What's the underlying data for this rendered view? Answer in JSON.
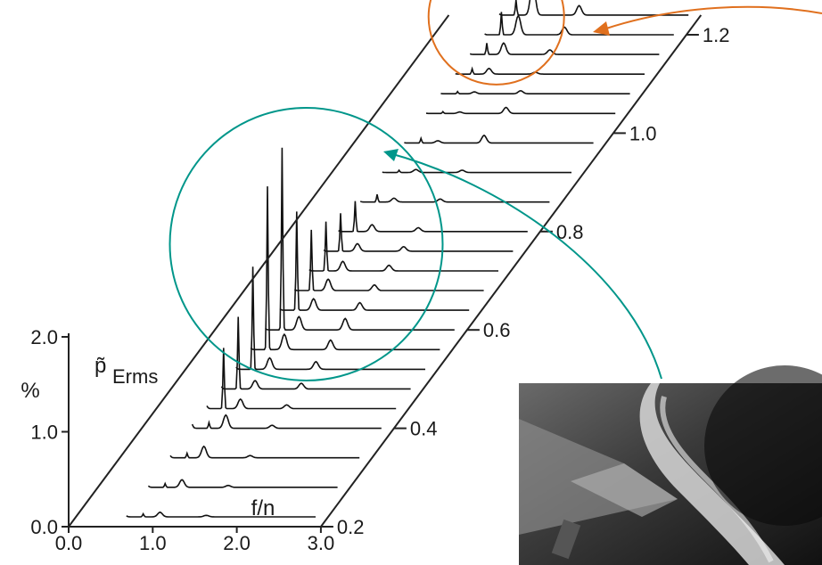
{
  "chart_data": {
    "type": "waterfall-3d-line",
    "axes": {
      "x": {
        "label": "f/n",
        "ticks": [
          "0.0",
          "1.0",
          "2.0",
          "3.0"
        ],
        "range": [
          0,
          3
        ]
      },
      "y": {
        "label": "p̃",
        "label_sub": "Erms",
        "unit": "%",
        "ticks": [
          "0.0",
          "1.0",
          "2.0"
        ],
        "range": [
          0,
          2
        ]
      },
      "z": {
        "ticks": [
          "0.2",
          "0.4",
          "0.6",
          "0.8",
          "1.0",
          "1.2"
        ],
        "range": [
          0.2,
          1.2
        ]
      }
    },
    "peak_positions_fn": [
      0.55,
      0.8,
      1.0,
      1.55
    ],
    "traces": [
      {
        "z": 0.22,
        "peaks": [
          0.12,
          0.08,
          0.12,
          0.04
        ]
      },
      {
        "z": 0.28,
        "peaks": [
          0.18,
          0.1,
          0.2,
          0.05
        ]
      },
      {
        "z": 0.34,
        "peaks": [
          0.28,
          0.12,
          0.3,
          0.06
        ]
      },
      {
        "z": 0.4,
        "peaks": [
          0.5,
          0.15,
          0.35,
          0.08
        ]
      },
      {
        "z": 0.44,
        "peaks": [
          0.35,
          1.6,
          0.25,
          0.1
        ]
      },
      {
        "z": 0.48,
        "peaks": [
          0.3,
          1.9,
          0.22,
          0.15
        ]
      },
      {
        "z": 0.52,
        "peaks": [
          0.25,
          2.7,
          0.3,
          0.2
        ]
      },
      {
        "z": 0.56,
        "peaks": [
          0.2,
          4.3,
          0.4,
          0.25
        ]
      },
      {
        "z": 0.6,
        "peaks": [
          0.2,
          4.8,
          0.35,
          0.3
        ]
      },
      {
        "z": 0.64,
        "peaks": [
          0.18,
          2.6,
          0.3,
          0.2
        ]
      },
      {
        "z": 0.68,
        "peaks": [
          0.15,
          1.6,
          0.3,
          0.15
        ]
      },
      {
        "z": 0.72,
        "peaks": [
          0.15,
          1.3,
          0.25,
          0.15
        ]
      },
      {
        "z": 0.76,
        "peaks": [
          0.15,
          1.0,
          0.2,
          0.12
        ]
      },
      {
        "z": 0.8,
        "peaks": [
          0.12,
          0.8,
          0.18,
          0.1
        ]
      },
      {
        "z": 0.86,
        "peaks": [
          0.08,
          0.2,
          0.1,
          0.08
        ]
      },
      {
        "z": 0.92,
        "peaks": [
          0.05,
          0.06,
          0.08,
          0.06
        ]
      },
      {
        "z": 0.98,
        "peaks": [
          0.05,
          0.12,
          0.06,
          0.2
        ]
      },
      {
        "z": 1.04,
        "peaks": [
          0.03,
          0.05,
          0.04,
          0.16
        ]
      },
      {
        "z": 1.08,
        "peaks": [
          0.03,
          0.06,
          0.05,
          0.08
        ]
      },
      {
        "z": 1.12,
        "peaks": [
          0.05,
          0.14,
          0.15,
          0.05
        ]
      },
      {
        "z": 1.16,
        "peaks": [
          0.08,
          0.3,
          0.3,
          0.12
        ]
      },
      {
        "z": 1.2,
        "peaks": [
          0.1,
          0.6,
          0.5,
          0.2
        ]
      },
      {
        "z": 1.24,
        "peaks": [
          0.15,
          0.4,
          0.9,
          0.25
        ]
      }
    ],
    "highlights": [
      {
        "color": "#00968a",
        "trace_range": [
          4,
          13
        ]
      },
      {
        "color": "#e0701e",
        "trace_range": [
          17,
          22
        ]
      }
    ],
    "inset_image": {
      "description": "grayscale photo inset"
    },
    "grid": false
  }
}
